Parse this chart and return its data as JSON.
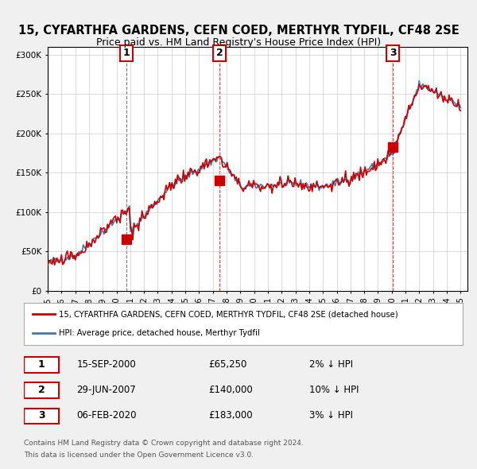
{
  "title_line1": "15, CYFARTHFA GARDENS, CEFN COED, MERTHYR TYDFIL, CF48 2SE",
  "title_line2": "Price paid vs. HM Land Registry's House Price Index (HPI)",
  "ylabel": "",
  "xlabel": "",
  "ylim": [
    0,
    310000
  ],
  "yticks": [
    0,
    50000,
    100000,
    150000,
    200000,
    250000,
    300000
  ],
  "ytick_labels": [
    "£0",
    "£50K",
    "£100K",
    "£150K",
    "£200K",
    "£250K",
    "£300K"
  ],
  "bg_color": "#f0f0f0",
  "plot_bg_color": "#ffffff",
  "red_color": "#cc0000",
  "blue_color": "#4477aa",
  "sale_dates": [
    2000.71,
    2007.49,
    2020.09
  ],
  "sale_prices": [
    65250,
    140000,
    183000
  ],
  "sale_labels": [
    "1",
    "2",
    "3"
  ],
  "sale_date_strs": [
    "15-SEP-2000",
    "29-JUN-2007",
    "06-FEB-2020"
  ],
  "sale_price_strs": [
    "£65,250",
    "£140,000",
    "£183,000"
  ],
  "sale_pct_strs": [
    "2% ↓ HPI",
    "10% ↓ HPI",
    "3% ↓ HPI"
  ],
  "legend_red": "15, CYFARTHFA GARDENS, CEFN COED, MERTHYR TYDFIL, CF48 2SE (detached house)",
  "legend_blue": "HPI: Average price, detached house, Merthyr Tydfil",
  "footer1": "Contains HM Land Registry data © Crown copyright and database right 2024.",
  "footer2": "This data is licensed under the Open Government Licence v3.0."
}
